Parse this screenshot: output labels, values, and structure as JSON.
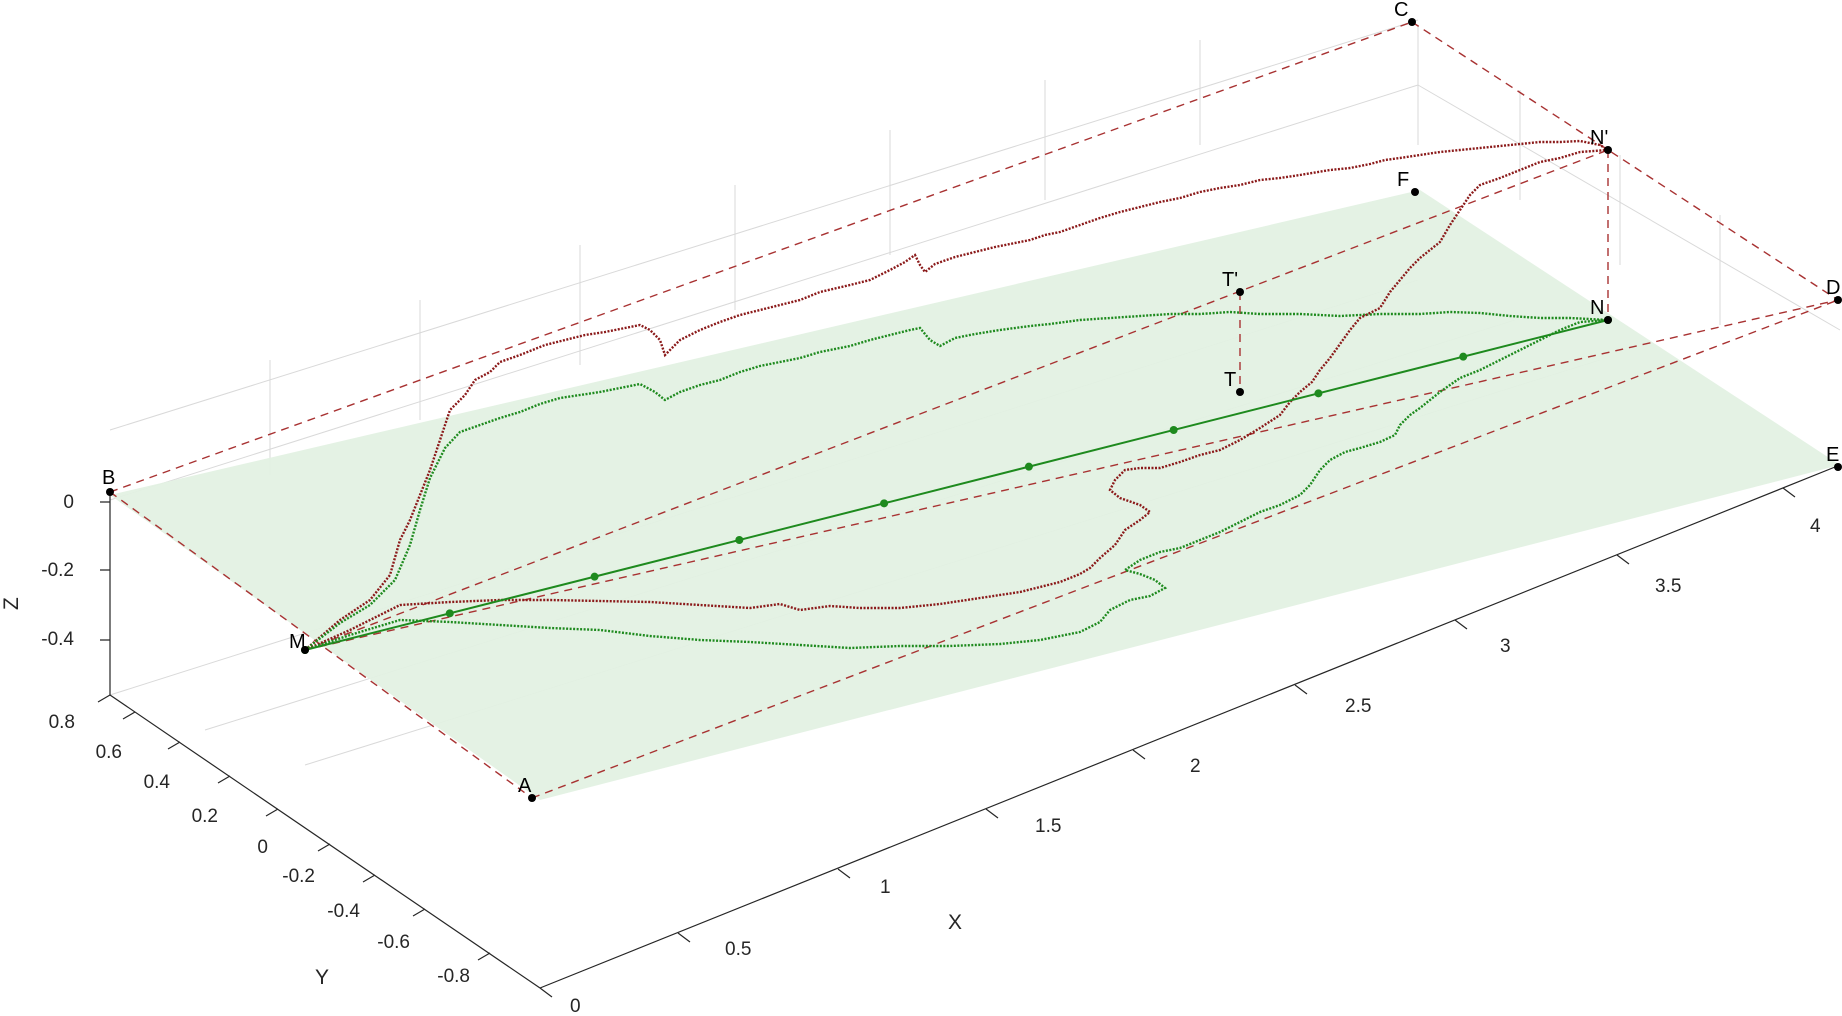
{
  "chart_data": {
    "type": "line3d",
    "axes": {
      "xlabel": "X",
      "ylabel": "Y",
      "zlabel": "Z",
      "xlim": [
        0,
        4.2
      ],
      "ylim": [
        -0.9,
        0.9
      ],
      "zlim": [
        -0.55,
        0
      ],
      "xticks": [
        "0",
        "0.5",
        "1",
        "1.5",
        "2",
        "2.5",
        "3",
        "3.5",
        "4"
      ],
      "yticks": [
        "-0.8",
        "-0.6",
        "-0.4",
        "-0.2",
        "0",
        "0.2",
        "0.4",
        "0.6",
        "0.8"
      ],
      "zticks": [
        "-0.4",
        "-0.2",
        "0"
      ],
      "grid": true
    },
    "plane_color": "#e3f1e3",
    "colors": {
      "green": "#1e8a1e",
      "red": "#8b1a1a",
      "frame": "#a83232",
      "point": "#000000"
    },
    "points": [
      {
        "label": "A",
        "x": 0.0,
        "y": -0.88,
        "z": -0.6
      },
      {
        "label": "B",
        "x": 0.0,
        "y": 0.88,
        "z": 0.0
      },
      {
        "label": "C",
        "x": 4.2,
        "y": 0.88,
        "z": 0.0
      },
      {
        "label": "D",
        "x": 4.2,
        "y": -0.88,
        "z": 0.0
      },
      {
        "label": "E",
        "x": 4.2,
        "y": -0.88,
        "z": -0.3
      },
      {
        "label": "F",
        "x": 4.2,
        "y": 0.88,
        "z": -0.3
      },
      {
        "label": "M",
        "x": 0.0,
        "y": 0.0,
        "z": -0.3
      },
      {
        "label": "N",
        "x": 4.2,
        "y": 0.0,
        "z": 0.0
      },
      {
        "label": "N'",
        "x": 4.2,
        "y": 0.0,
        "z": 0.3
      },
      {
        "label": "T",
        "x": 2.35,
        "y": 0.0,
        "z": -0.12
      },
      {
        "label": "T'",
        "x": 2.35,
        "y": 0.0,
        "z": 0.05
      }
    ],
    "series": [
      {
        "color": "green",
        "style": "solid-markers",
        "from": "M",
        "to": "N",
        "markers": 9
      },
      {
        "color": "green",
        "style": "dotted",
        "path": "upper"
      },
      {
        "color": "green",
        "style": "dotted",
        "path": "lower"
      },
      {
        "color": "red",
        "style": "dotted",
        "path": "upper"
      },
      {
        "color": "red",
        "style": "dotted",
        "path": "lower"
      }
    ]
  }
}
